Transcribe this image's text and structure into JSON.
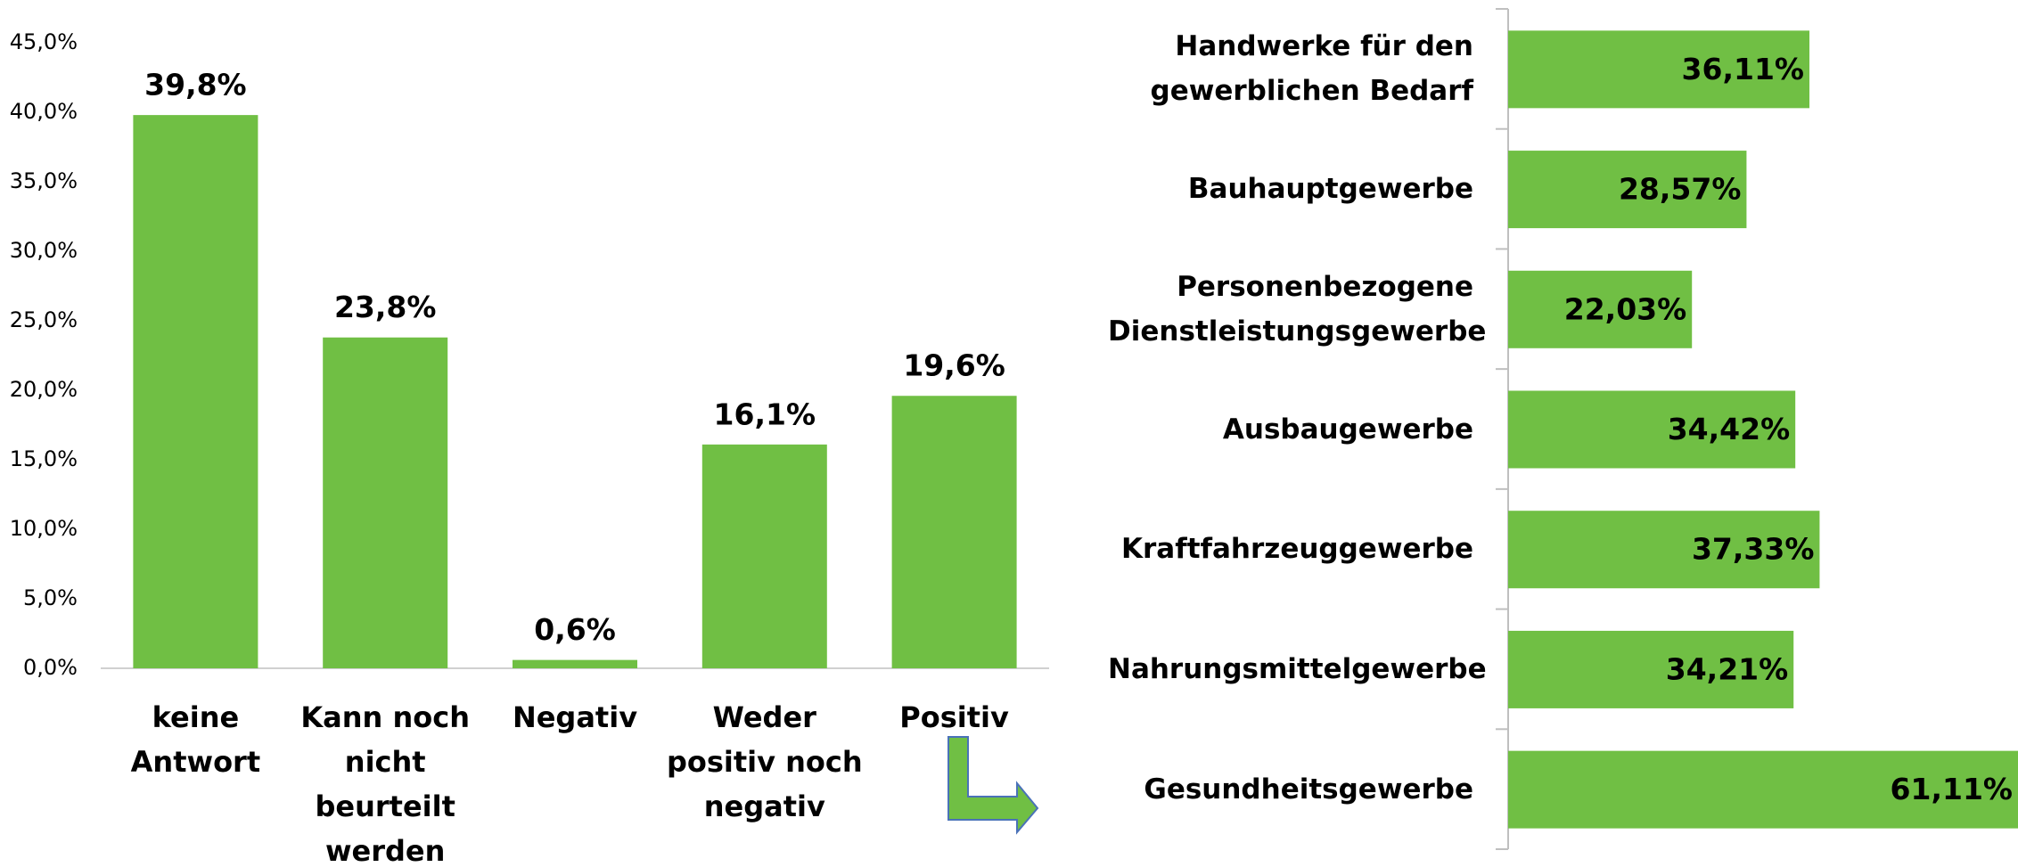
{
  "chart_data": [
    {
      "type": "bar",
      "categories": [
        "keine Antwort",
        "Kann noch nicht beurteilt werden",
        "Negativ",
        "Weder positiv noch negativ",
        "Positiv"
      ],
      "values": [
        39.8,
        23.8,
        0.6,
        16.1,
        19.6
      ],
      "value_labels": [
        "39,8%",
        "23,8%",
        "0,6%",
        "16,1%",
        "19,6%"
      ],
      "color": "#70bf44",
      "ylim": [
        0,
        45
      ],
      "yticks": [
        {
          "value": 0,
          "label": "0,0%"
        },
        {
          "value": 5,
          "label": "5,0%"
        },
        {
          "value": 10,
          "label": "10,0%"
        },
        {
          "value": 15,
          "label": "15,0%"
        },
        {
          "value": 20,
          "label": "20,0%"
        },
        {
          "value": 25,
          "label": "25,0%"
        },
        {
          "value": 30,
          "label": "30,0%"
        },
        {
          "value": 35,
          "label": "35,0%"
        },
        {
          "value": 40,
          "label": "40,0%"
        },
        {
          "value": 45,
          "label": "45,0%"
        }
      ]
    },
    {
      "type": "hbar",
      "categories": [
        "Handwerke für den gewerblichen Bedarf",
        "Bauhauptgewerbe",
        "Personenbezogene Dienstleistungsgewerbe",
        "Ausbaugewerbe",
        "Kraftfahrzeuggewerbe",
        "Nahrungsmittelgewerbe",
        "Gesundheitsgewerbe"
      ],
      "values": [
        36.11,
        28.57,
        22.03,
        34.42,
        37.33,
        34.21,
        61.11
      ],
      "value_labels": [
        "36,11%",
        "28,57%",
        "22,03%",
        "34,42%",
        "37,33%",
        "34,21%",
        "61,11%"
      ],
      "color": "#70bf44"
    }
  ]
}
